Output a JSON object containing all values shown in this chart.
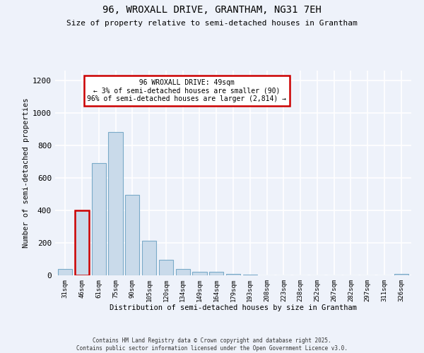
{
  "title1": "96, WROXALL DRIVE, GRANTHAM, NG31 7EH",
  "title2": "Size of property relative to semi-detached houses in Grantham",
  "xlabel": "Distribution of semi-detached houses by size in Grantham",
  "ylabel": "Number of semi-detached properties",
  "bin_labels": [
    "31sqm",
    "46sqm",
    "61sqm",
    "75sqm",
    "90sqm",
    "105sqm",
    "120sqm",
    "134sqm",
    "149sqm",
    "164sqm",
    "179sqm",
    "193sqm",
    "208sqm",
    "223sqm",
    "238sqm",
    "252sqm",
    "267sqm",
    "282sqm",
    "297sqm",
    "311sqm",
    "326sqm"
  ],
  "bar_values": [
    40,
    400,
    690,
    880,
    495,
    215,
    95,
    40,
    22,
    20,
    8,
    4,
    2,
    1,
    1,
    0,
    0,
    0,
    0,
    0,
    7
  ],
  "highlight_bin_index": 1,
  "highlight_label": "96 WROXALL DRIVE: 49sqm",
  "smaller_pct": "3%",
  "smaller_n": "90",
  "larger_pct": "96%",
  "larger_n": "2,814",
  "bar_color": "#c9daea",
  "bar_edge_color": "#7aaac8",
  "highlight_bar_edge_color": "#cc0000",
  "annotation_box_color": "#ffffff",
  "annotation_box_edge_color": "#cc0000",
  "background_color": "#eef2fa",
  "grid_color": "#ffffff",
  "footer1": "Contains HM Land Registry data © Crown copyright and database right 2025.",
  "footer2": "Contains public sector information licensed under the Open Government Licence v3.0.",
  "ylim": [
    0,
    1260
  ],
  "yticks": [
    0,
    200,
    400,
    600,
    800,
    1000,
    1200
  ]
}
